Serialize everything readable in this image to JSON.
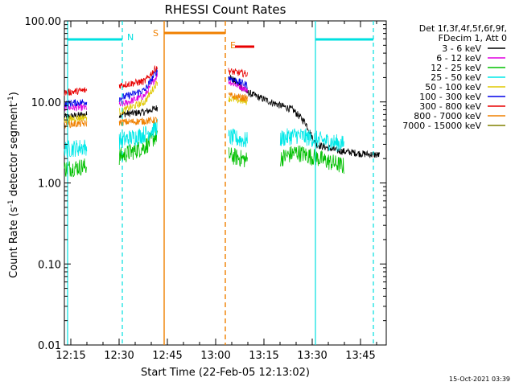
{
  "chart_data": {
    "type": "line",
    "title": "RHESSI Count Rates",
    "xlabel": "Start Time (22-Feb-05 12:13:02)",
    "ylabel_main": "Count Rate (s",
    "ylabel_sup1": "-1",
    "ylabel_mid": " detector segment",
    "ylabel_sup2": "-1",
    "ylabel_end": ")",
    "y_scale": "log",
    "ylim": [
      0.01,
      100
    ],
    "xlim": [
      "12:13",
      "13:53"
    ],
    "x_ticks": [
      "12:15",
      "12:30",
      "12:45",
      "13:00",
      "13:15",
      "13:30",
      "13:45"
    ],
    "y_ticks": [
      {
        "value": 100,
        "label": "100.00"
      },
      {
        "value": 10,
        "label": "10.00"
      },
      {
        "value": 1,
        "label": "1.00"
      },
      {
        "value": 0.1,
        "label": "0.10"
      },
      {
        "value": 0.01,
        "label": "0.01"
      }
    ],
    "grid": false,
    "legend_header": [
      "Det 1f,3f,4f,5f,6f,9f,",
      "FDecim 1, Att 0"
    ],
    "legend_position": "right",
    "series": [
      {
        "name": "3 - 6 keV",
        "color": "#000000",
        "x": [
          "12:13",
          "12:20",
          "12:30",
          "12:38",
          "12:42",
          "13:04",
          "13:10",
          "13:17",
          "13:24",
          "13:28",
          "13:31",
          "13:38",
          "13:45",
          "13:51"
        ],
        "values": [
          6.5,
          7.0,
          7.0,
          7.5,
          8.5,
          21,
          13,
          10,
          8.0,
          5.5,
          3.0,
          2.5,
          2.3,
          2.2
        ]
      },
      {
        "name": "6 - 12 keV",
        "color": "#e000e0",
        "x": [
          "12:13",
          "12:20",
          "12:30",
          "12:38",
          "12:42",
          "13:04",
          "13:10",
          "13:20",
          "13:30",
          "13:40",
          "13:51"
        ],
        "values": [
          8.5,
          8.5,
          9.0,
          12,
          22,
          18,
          14,
          12,
          11,
          10,
          9.0
        ]
      },
      {
        "name": "12 - 25 keV",
        "color": "#00c000",
        "x": [
          "12:13",
          "12:20",
          "12:30",
          "12:38",
          "12:42",
          "13:04",
          "13:10",
          "13:20",
          "13:25",
          "13:32",
          "13:40",
          "13:51"
        ],
        "values": [
          1.5,
          1.6,
          2.1,
          2.8,
          4.0,
          2.2,
          1.9,
          2.0,
          2.4,
          2.0,
          1.6,
          1.5
        ]
      },
      {
        "name": "25 - 50 keV",
        "color": "#00e8e8",
        "x": [
          "12:13",
          "12:20",
          "12:30",
          "12:38",
          "12:42",
          "13:04",
          "13:10",
          "13:20",
          "13:25",
          "13:32",
          "13:40",
          "13:51"
        ],
        "values": [
          2.6,
          2.8,
          3.3,
          4.0,
          5.0,
          3.7,
          3.3,
          3.5,
          3.9,
          3.4,
          3.0,
          2.8
        ]
      },
      {
        "name": "50 - 100 keV",
        "color": "#e0c800",
        "x": [
          "12:13",
          "12:20",
          "12:30",
          "12:38",
          "12:42",
          "13:04",
          "13:10",
          "13:20",
          "13:30",
          "13:40",
          "13:51"
        ],
        "values": [
          6.0,
          6.5,
          7.5,
          10,
          18,
          11,
          10,
          9.0,
          8.5,
          8.0,
          7.5
        ]
      },
      {
        "name": "100 - 300 keV",
        "color": "#0000e8",
        "x": [
          "12:13",
          "12:20",
          "12:30",
          "12:38",
          "12:42",
          "13:04",
          "13:10",
          "13:20",
          "13:30",
          "13:40",
          "13:51"
        ],
        "values": [
          9.5,
          10,
          11,
          14,
          25,
          20,
          16,
          14,
          12.5,
          11,
          10
        ]
      },
      {
        "name": "300 - 800 keV",
        "color": "#e80000",
        "x": [
          "12:13",
          "12:20",
          "12:30",
          "12:38",
          "12:42",
          "13:04",
          "13:10",
          "13:20",
          "13:30",
          "13:40",
          "13:51"
        ],
        "values": [
          13,
          14,
          16,
          18,
          28,
          24,
          22,
          21,
          20,
          17.5,
          15
        ]
      },
      {
        "name": "800 - 7000 keV",
        "color": "#f08000",
        "x": [
          "12:13",
          "12:20",
          "12:30",
          "12:38",
          "12:42",
          "13:04",
          "13:10",
          "13:20",
          "13:30",
          "13:40",
          "13:51"
        ],
        "values": [
          5.3,
          5.4,
          5.6,
          5.8,
          6.0,
          12,
          11,
          10,
          9.0,
          8.0,
          7.0
        ]
      },
      {
        "name": "7000 - 15000 keV",
        "color": "#808000",
        "x": [],
        "values": []
      }
    ],
    "attenuator_lines": [
      {
        "time": "12:44",
        "style": "solid",
        "color": "#f08000",
        "label": "S"
      },
      {
        "time": "13:03",
        "style": "dashed",
        "color": "#f08000",
        "label": "E"
      }
    ],
    "night_lines": [
      {
        "time": "12:14",
        "style": "solid",
        "color": "#00e0e0"
      },
      {
        "time": "12:31",
        "style": "dashed",
        "color": "#00e0e0",
        "label": "N"
      },
      {
        "time": "13:31",
        "style": "solid",
        "color": "#00e0e0"
      },
      {
        "time": "13:49",
        "style": "dashed",
        "color": "#00e0e0"
      }
    ],
    "bars": [
      {
        "name": "night",
        "color": "#00e0e0",
        "start": "12:14",
        "end": "12:31"
      },
      {
        "name": "saa",
        "color": "#f08000",
        "start": "12:44",
        "end": "13:03"
      },
      {
        "name": "eclipse",
        "color": "#e80000",
        "start": "13:06",
        "end": "13:12"
      },
      {
        "name": "night-2",
        "color": "#00e0e0",
        "start": "13:31",
        "end": "13:49"
      }
    ]
  },
  "footer": {
    "timestamp": "15-Oct-2021 03:39"
  }
}
